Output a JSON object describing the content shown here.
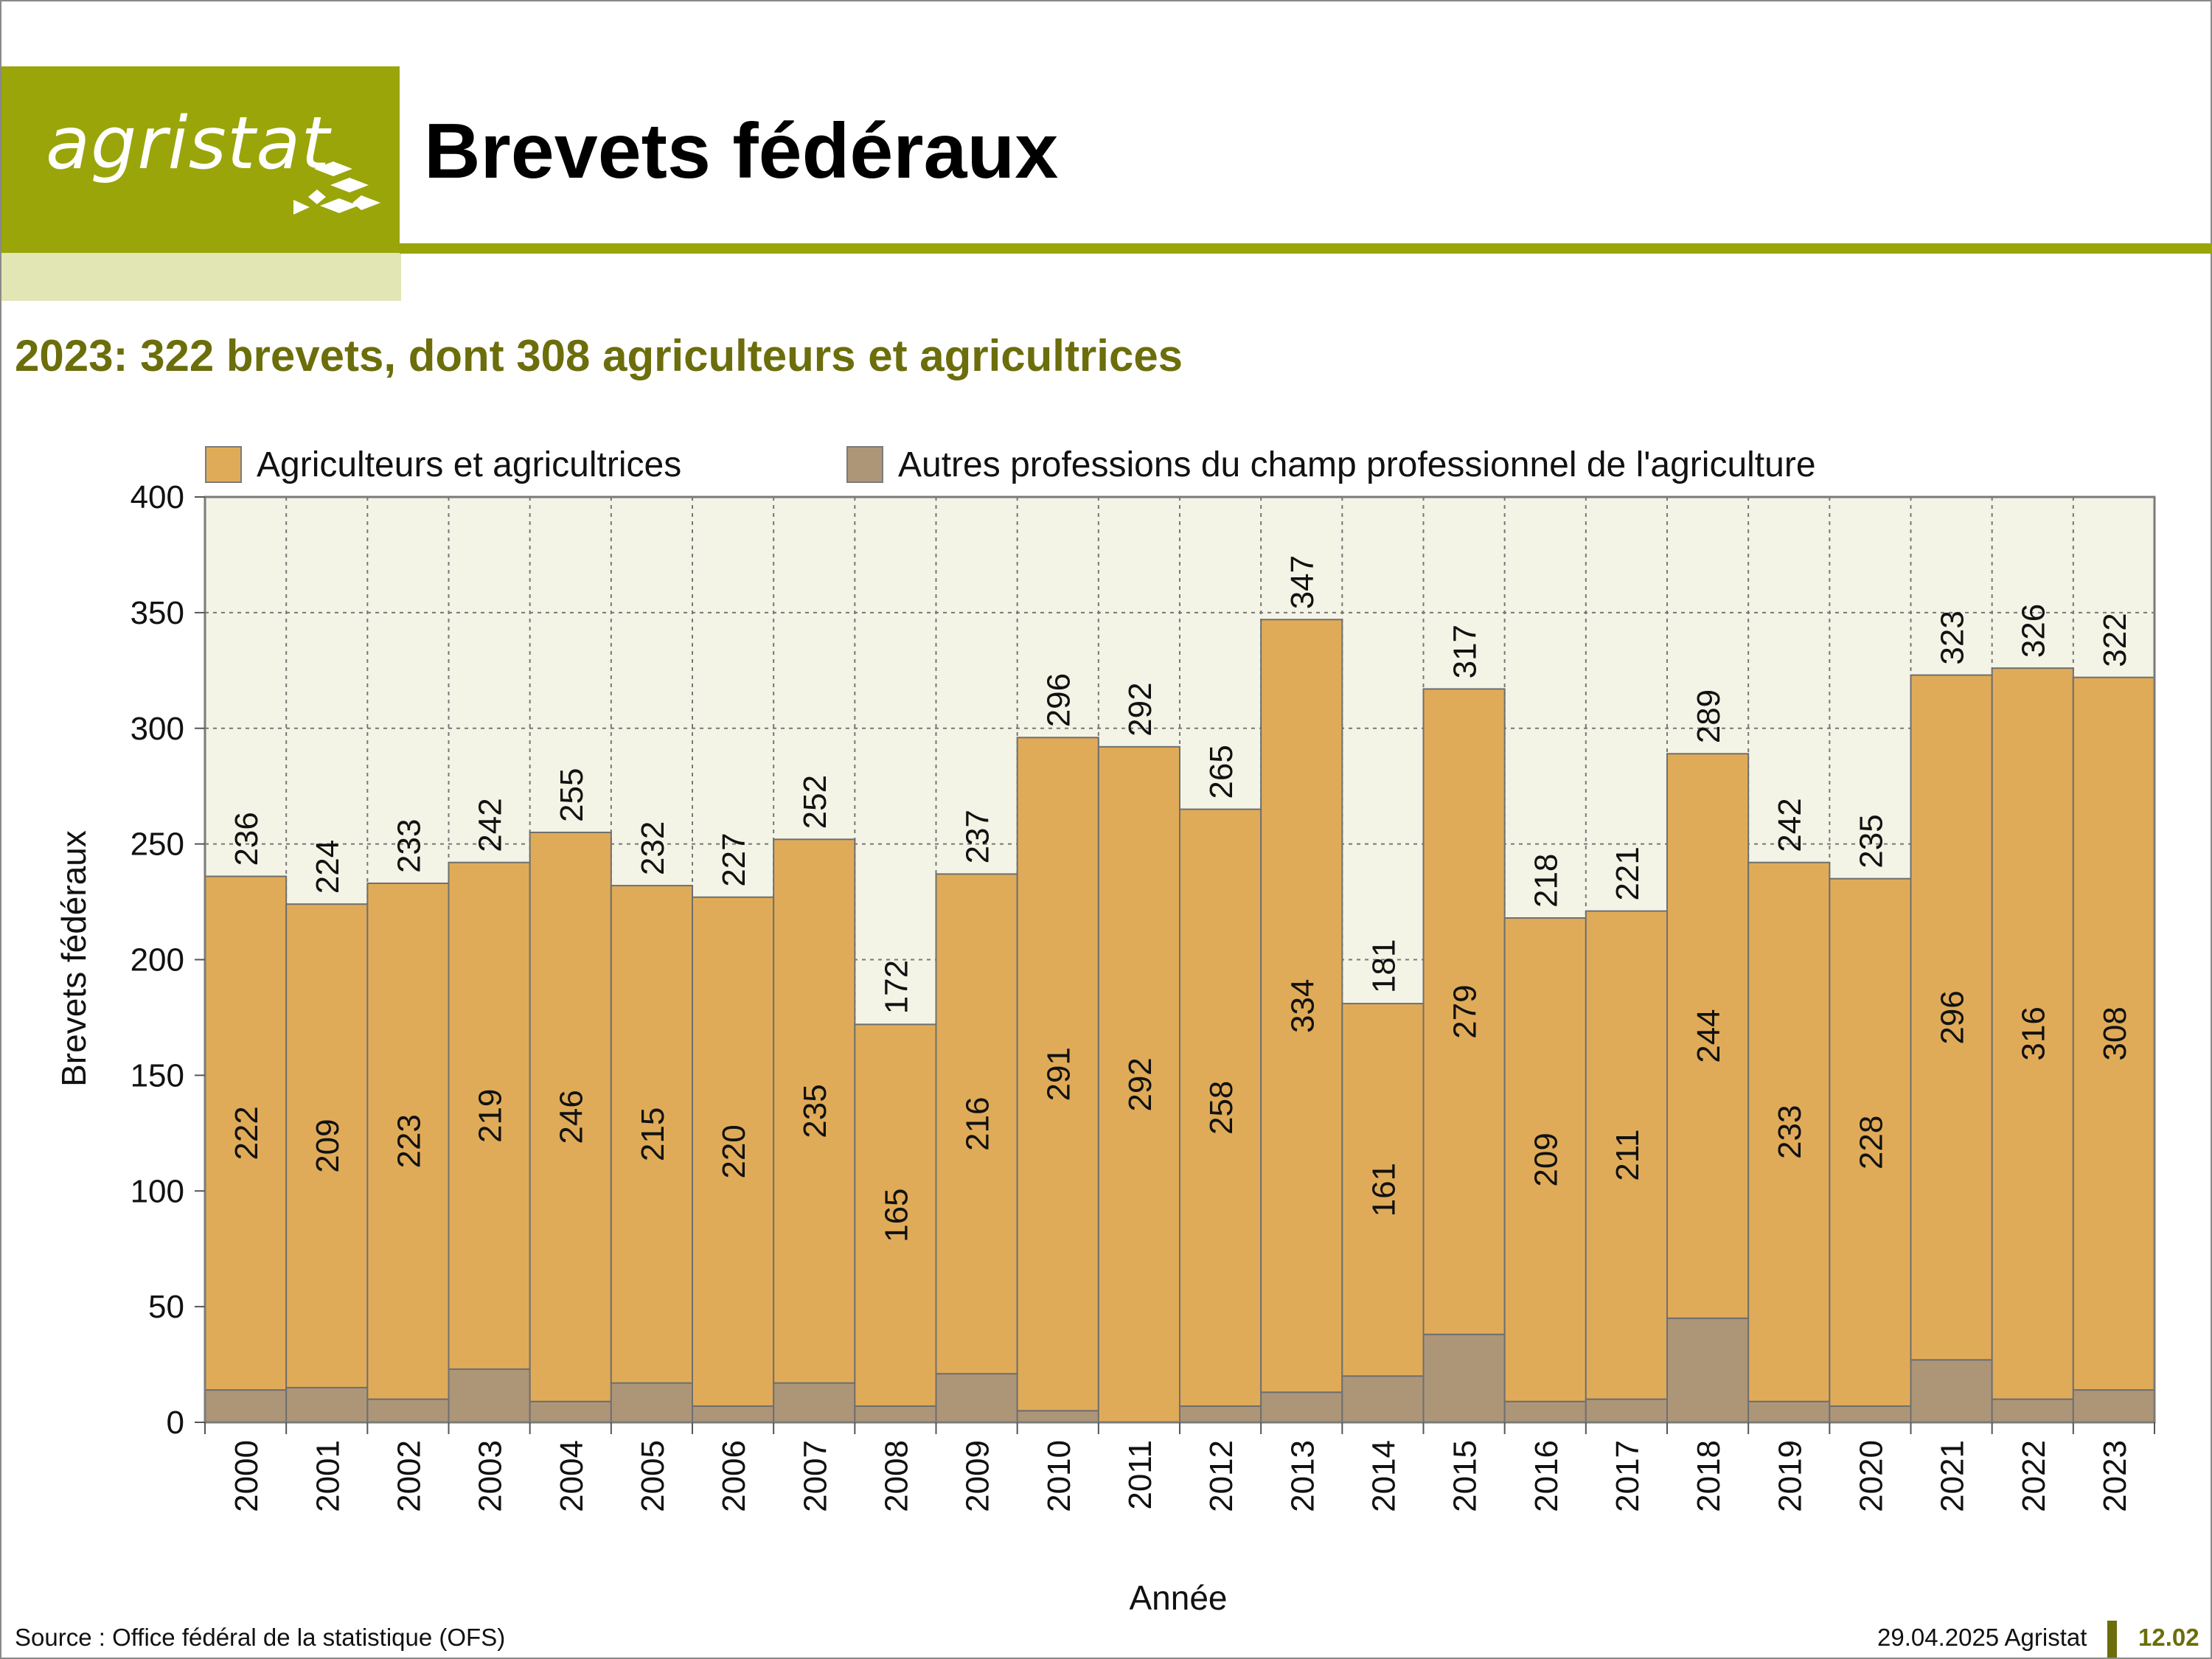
{
  "header": {
    "logo_text": "agristat",
    "title": "Brevets fédéraux"
  },
  "subtitle": "2023: 322 brevets, dont 308 agriculteurs et agricultrices",
  "footer": {
    "source": "Source : Office fédéral de la statistique (OFS)",
    "date": "29.04.2025 Agristat",
    "page": "12.02"
  },
  "colors": {
    "brand": "#9aa50a",
    "subtitle": "#6b6e0a",
    "agriculteurs": "#e0ab58",
    "autres": "#ad9678",
    "plot_bg": "#f3f4e6"
  },
  "chart_data": {
    "type": "bar",
    "stacked": true,
    "xlabel": "Année",
    "ylabel": "Brevets fédéraux",
    "ylim": [
      0,
      400
    ],
    "yticks": [
      0,
      50,
      100,
      150,
      200,
      250,
      300,
      350,
      400
    ],
    "grid": true,
    "legend_position": "top",
    "categories": [
      "2000",
      "2001",
      "2002",
      "2003",
      "2004",
      "2005",
      "2006",
      "2007",
      "2008",
      "2009",
      "2010",
      "2011",
      "2012",
      "2013",
      "2014",
      "2015",
      "2016",
      "2017",
      "2018",
      "2019",
      "2020",
      "2021",
      "2022",
      "2023"
    ],
    "totals": [
      236,
      224,
      233,
      242,
      255,
      232,
      227,
      252,
      172,
      237,
      296,
      292,
      265,
      347,
      181,
      317,
      218,
      221,
      289,
      242,
      235,
      323,
      326,
      322
    ],
    "series": [
      {
        "name": "Autres professions du champ professionnel de l'agriculture",
        "values": [
          14,
          15,
          10,
          23,
          9,
          17,
          7,
          17,
          7,
          21,
          5,
          0,
          7,
          13,
          20,
          38,
          9,
          10,
          45,
          9,
          7,
          27,
          10,
          14
        ]
      },
      {
        "name": "Agriculteurs et agricultrices",
        "values": [
          222,
          209,
          223,
          219,
          246,
          215,
          220,
          235,
          165,
          216,
          291,
          292,
          258,
          334,
          161,
          279,
          209,
          211,
          244,
          233,
          228,
          296,
          316,
          308
        ]
      }
    ]
  }
}
